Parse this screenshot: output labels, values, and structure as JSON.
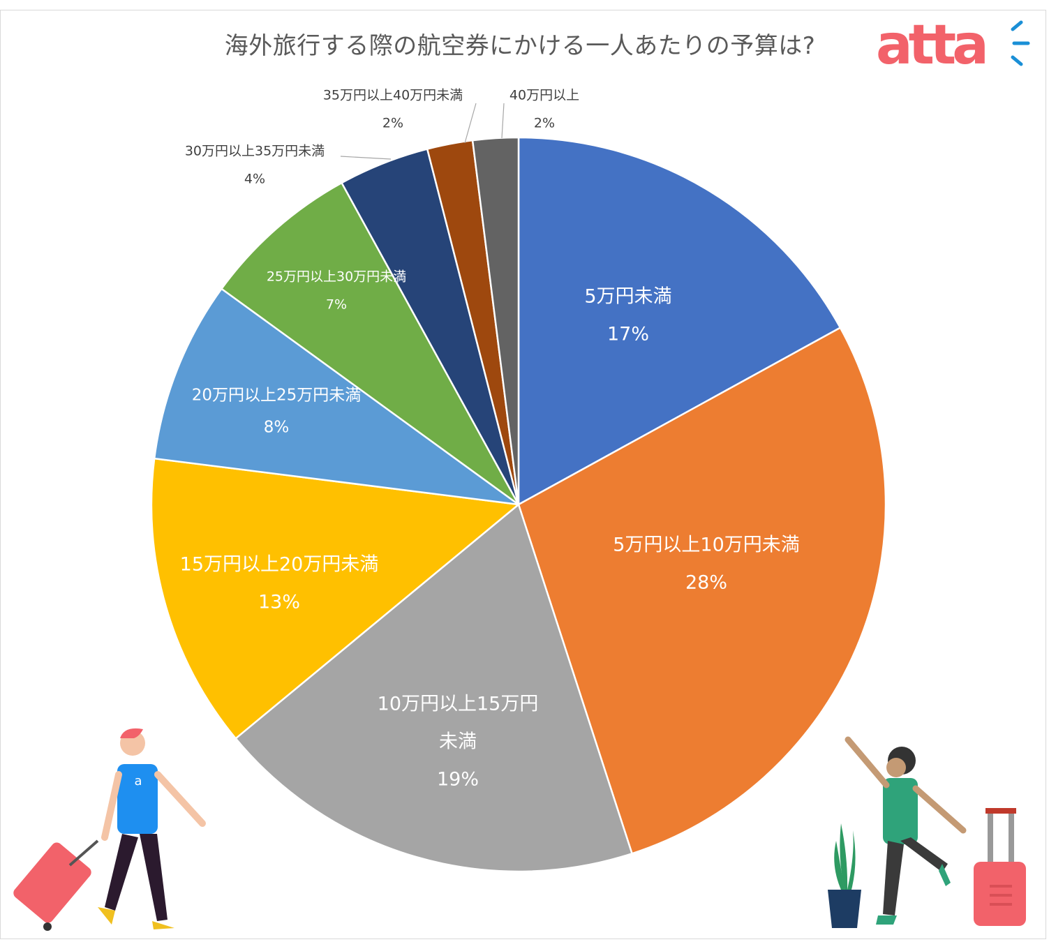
{
  "brand": {
    "logo_text": "atta",
    "logo_color": "#f2626a",
    "logo_accent_color": "#1a8fd6"
  },
  "chart_data": {
    "type": "pie",
    "title": "海外旅行する際の航空券にかける一人あたりの予算は?",
    "start_angle": "12 o'clock, clockwise",
    "slices": [
      {
        "label": "5万円未満",
        "value": 17,
        "value_label": "17%",
        "color": "#4472c4",
        "label_color": "#ffffff"
      },
      {
        "label": "5万円以上10万円未満",
        "value": 28,
        "value_label": "28%",
        "color": "#ed7d31",
        "label_color": "#ffffff"
      },
      {
        "label": "10万円以上15万円未満",
        "value": 19,
        "value_label": "19%",
        "color": "#a5a5a5",
        "label_color": "#ffffff"
      },
      {
        "label": "15万円以上20万円未満",
        "value": 13,
        "value_label": "13%",
        "color": "#ffc000",
        "label_color": "#ffffff"
      },
      {
        "label": "20万円以上25万円未満",
        "value": 8,
        "value_label": "8%",
        "color": "#5b9bd5",
        "label_color": "#ffffff"
      },
      {
        "label": "25万円以上30万円未満",
        "value": 7,
        "value_label": "7%",
        "color": "#70ad47",
        "label_color": "#ffffff"
      },
      {
        "label": "30万円以上35万円未満",
        "value": 4,
        "value_label": "4%",
        "color": "#264478",
        "label_color": "#404040"
      },
      {
        "label": "35万円以上40万円未満",
        "value": 2,
        "value_label": "2%",
        "color": "#9e480e",
        "label_color": "#404040"
      },
      {
        "label": "40万円以上",
        "value": 2,
        "value_label": "2%",
        "color": "#636363",
        "label_color": "#404040"
      }
    ]
  }
}
